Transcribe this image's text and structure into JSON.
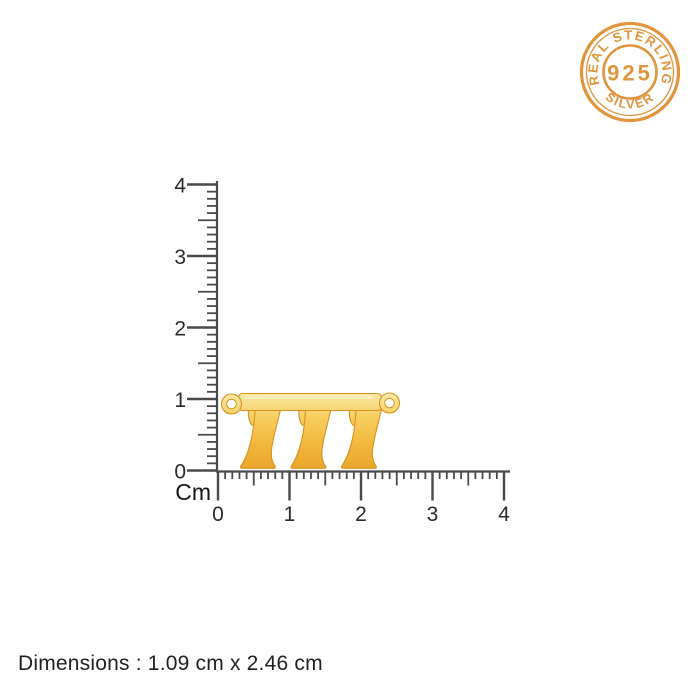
{
  "badge": {
    "top_text": "REAL STERLING",
    "center_text": "925",
    "bottom_text": "SILVER",
    "color": "#E0953C"
  },
  "rulers": {
    "unit_label": "Cm",
    "tick_color": "#4a4a4a",
    "label_color": "#2b2b2b",
    "vertical": {
      "labels": [
        "0",
        "1",
        "2",
        "3",
        "4"
      ],
      "max_cm": 4
    },
    "horizontal": {
      "labels": [
        "0",
        "1",
        "2",
        "3",
        "4"
      ],
      "max_cm": 4
    }
  },
  "pendant": {
    "text": "777",
    "gold_light": "#FCEBAC",
    "gold_soft": "#F7CF63",
    "gold_mid": "#F2B93E",
    "gold_deep": "#E9A42A",
    "outline": "#D6921F",
    "highlight": "#FFF0BE"
  },
  "footer": {
    "dimensions_text": "Dimensions : 1.09 cm x 2.46 cm"
  }
}
